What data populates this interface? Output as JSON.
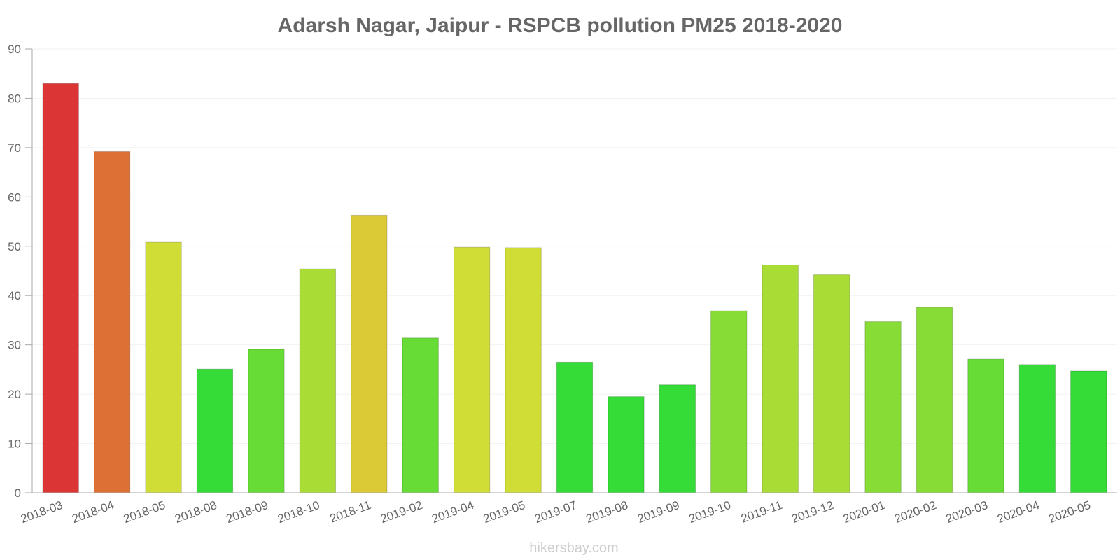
{
  "chart_data": {
    "type": "bar",
    "title": "Adarsh Nagar, Jaipur - RSPCB pollution PM25 2018-2020",
    "xlabel": "",
    "ylabel": "",
    "ylim": [
      0,
      90
    ],
    "yticks": [
      0,
      10,
      20,
      30,
      40,
      50,
      60,
      70,
      80,
      90
    ],
    "grid": true,
    "categories": [
      "2018-03",
      "2018-04",
      "2018-05",
      "2018-08",
      "2018-09",
      "2018-10",
      "2018-11",
      "2019-02",
      "2019-04",
      "2019-05",
      "2019-07",
      "2019-08",
      "2019-09",
      "2019-10",
      "2019-11",
      "2019-12",
      "2020-01",
      "2020-02",
      "2020-03",
      "2020-04",
      "2020-05"
    ],
    "values": [
      83,
      69.2,
      50.8,
      25.1,
      29.1,
      45.4,
      56.3,
      31.4,
      49.8,
      49.7,
      26.5,
      19.5,
      21.9,
      36.9,
      46.2,
      44.2,
      34.7,
      37.6,
      27.1,
      26,
      24.7
    ],
    "colors": [
      "#dc3535",
      "#dc7035",
      "#cfdd36",
      "#35dc37",
      "#67dc36",
      "#a9dd36",
      "#dbc936",
      "#67dc36",
      "#cfdd36",
      "#cfdd36",
      "#35dc37",
      "#35dc37",
      "#35dc37",
      "#88dc36",
      "#a9dd36",
      "#a9dd36",
      "#88dc36",
      "#88dc36",
      "#67dc36",
      "#35dc37",
      "#35dc37"
    ]
  },
  "credit": "hikersbay.com"
}
